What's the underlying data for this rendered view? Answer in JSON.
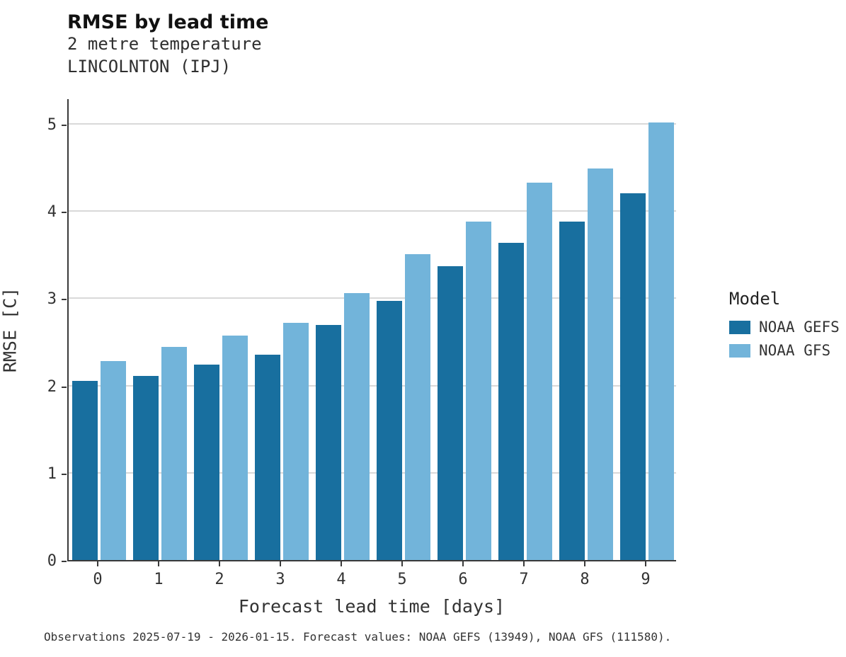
{
  "header": {
    "title": "RMSE by lead time",
    "subtitle_line1": "2 metre temperature",
    "subtitle_line2": "LINCOLNTON (IPJ)"
  },
  "caption": "Observations 2025-07-19 - 2026-01-15. Forecast values: NOAA GEFS (13949), NOAA GFS (111580).",
  "legend": {
    "title": "Model",
    "items": [
      {
        "label": "NOAA GEFS",
        "color": "#186f9f"
      },
      {
        "label": "NOAA GFS",
        "color": "#72b4da"
      }
    ]
  },
  "chart_data": {
    "type": "bar",
    "title": "RMSE by lead time",
    "subtitle": "2 metre temperature — LINCOLNTON (IPJ)",
    "xlabel": "Forecast lead time [days]",
    "ylabel": "RMSE [C]",
    "categories": [
      "0",
      "1",
      "2",
      "3",
      "4",
      "5",
      "6",
      "7",
      "8",
      "9"
    ],
    "series": [
      {
        "name": "NOAA GEFS",
        "color": "#186f9f",
        "values": [
          2.06,
          2.12,
          2.25,
          2.36,
          2.7,
          2.98,
          3.38,
          3.65,
          3.89,
          4.22
        ]
      },
      {
        "name": "NOAA GFS",
        "color": "#72b4da",
        "values": [
          2.29,
          2.45,
          2.58,
          2.73,
          3.07,
          3.52,
          3.89,
          4.34,
          4.5,
          5.03
        ]
      }
    ],
    "ylim": [
      0,
      5.3
    ],
    "yticks": [
      0,
      1,
      2,
      3,
      4,
      5
    ],
    "grid": true,
    "legend_position": "right"
  }
}
